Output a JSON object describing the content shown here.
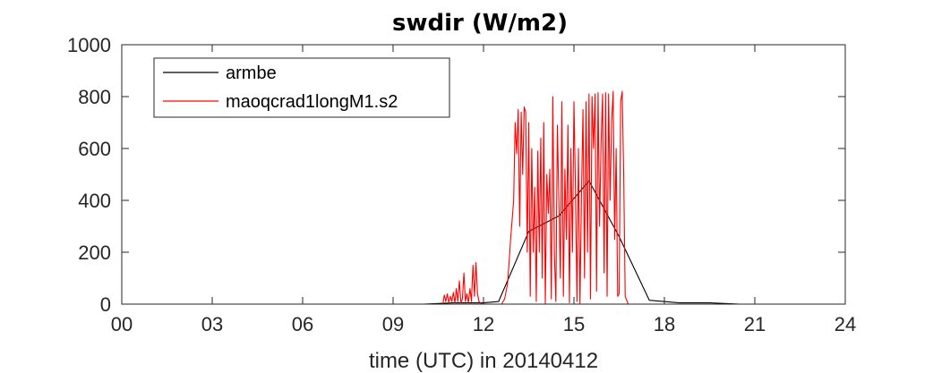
{
  "chart_data": {
    "type": "line",
    "title": "swdir  (W/m2)",
    "xlabel": "time (UTC) in 20140412",
    "ylabel": "",
    "xlim": [
      0,
      24
    ],
    "ylim": [
      0,
      1000
    ],
    "xticks": [
      0,
      3,
      6,
      9,
      12,
      15,
      18,
      21,
      24
    ],
    "xtick_labels": [
      "00",
      "03",
      "06",
      "09",
      "12",
      "15",
      "18",
      "21",
      "24"
    ],
    "yticks": [
      0,
      200,
      400,
      600,
      800,
      1000
    ],
    "ytick_labels": [
      "0",
      "200",
      "400",
      "600",
      "800",
      "1000"
    ],
    "grid": false,
    "legend_position": "top-left",
    "series": [
      {
        "name": "armbe",
        "color": "#000000",
        "x": [
          0,
          1,
          2,
          3,
          4,
          5,
          6,
          7,
          8,
          9,
          10,
          11,
          12,
          12.5,
          13.5,
          14.5,
          15.5,
          16.5,
          17.5,
          18.5,
          19.5,
          20.5,
          21.5,
          22.5,
          23.5,
          24
        ],
        "y": [
          0,
          0,
          0,
          0,
          0,
          0,
          0,
          0,
          0,
          0,
          0,
          5,
          5,
          10,
          280,
          340,
          475,
          260,
          15,
          5,
          5,
          0,
          0,
          0,
          0,
          0
        ]
      },
      {
        "name": "maoqcrad1longM1.s2",
        "color": "#ff0000",
        "x": [
          0,
          10.65,
          10.7,
          10.75,
          10.8,
          10.85,
          10.9,
          10.95,
          11.0,
          11.05,
          11.1,
          11.15,
          11.2,
          11.25,
          11.3,
          11.35,
          11.4,
          11.45,
          11.5,
          11.55,
          11.6,
          11.65,
          11.7,
          11.75,
          11.8,
          11.85,
          11.9,
          11.95,
          12.0,
          12.05,
          12.1,
          12.2,
          12.3,
          12.4,
          12.5,
          12.6,
          12.7,
          12.8,
          12.9,
          13.0,
          13.05,
          13.1,
          13.15,
          13.2,
          13.25,
          13.3,
          13.35,
          13.4,
          13.45,
          13.5,
          13.55,
          13.6,
          13.65,
          13.7,
          13.75,
          13.8,
          13.85,
          13.9,
          13.95,
          14.0,
          14.05,
          14.1,
          14.15,
          14.2,
          14.25,
          14.3,
          14.35,
          14.4,
          14.45,
          14.5,
          14.55,
          14.6,
          14.65,
          14.7,
          14.75,
          14.8,
          14.85,
          14.9,
          14.95,
          15.0,
          15.05,
          15.1,
          15.15,
          15.2,
          15.25,
          15.3,
          15.35,
          15.4,
          15.45,
          15.5,
          15.55,
          15.6,
          15.65,
          15.7,
          15.75,
          15.8,
          15.85,
          15.9,
          15.95,
          16.0,
          16.05,
          16.1,
          16.15,
          16.2,
          16.25,
          16.3,
          16.35,
          16.4,
          16.45,
          16.5,
          16.55,
          16.6,
          16.65,
          16.7,
          16.8,
          16.9,
          17.0,
          17.1,
          17.2,
          24
        ],
        "y": [
          0,
          0,
          35,
          10,
          40,
          5,
          30,
          10,
          45,
          5,
          60,
          10,
          90,
          5,
          20,
          120,
          10,
          40,
          5,
          60,
          10,
          150,
          30,
          160,
          40,
          10,
          5,
          0,
          0,
          0,
          0,
          0,
          0,
          0,
          0,
          0,
          20,
          80,
          250,
          400,
          700,
          580,
          750,
          300,
          740,
          500,
          760,
          740,
          200,
          700,
          30,
          600,
          200,
          450,
          10,
          590,
          200,
          640,
          100,
          700,
          0,
          500,
          350,
          520,
          20,
          800,
          200,
          10,
          690,
          400,
          100,
          780,
          30,
          520,
          250,
          690,
          5,
          600,
          200,
          780,
          450,
          10,
          600,
          0,
          420,
          750,
          100,
          780,
          200,
          810,
          20,
          800,
          600,
          810,
          50,
          815,
          300,
          620,
          810,
          120,
          815,
          30,
          810,
          400,
          700,
          820,
          250,
          600,
          30,
          40,
          780,
          820,
          500,
          30,
          0,
          0,
          0,
          0,
          0,
          0
        ]
      }
    ]
  }
}
